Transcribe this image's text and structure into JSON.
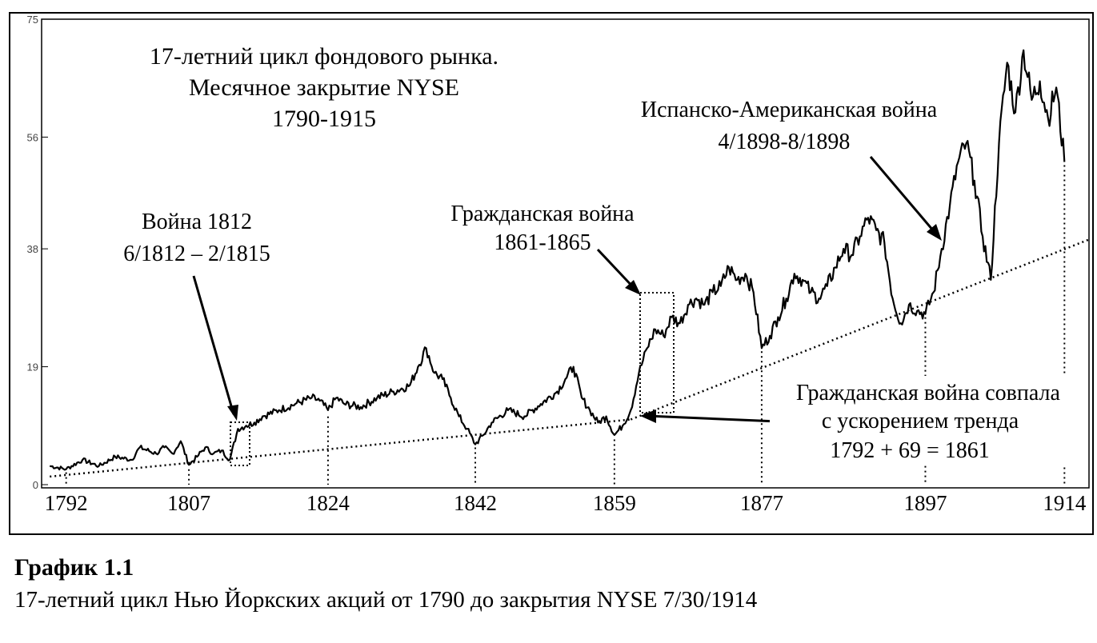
{
  "chart_data": {
    "type": "line",
    "title": [
      "17-летний цикл фондового рынка.",
      "Месячное закрытие NYSE",
      "1790-1915"
    ],
    "xlim": [
      1789,
      1917
    ],
    "ylim": [
      0,
      75
    ],
    "y_ticks": [
      "0",
      "19",
      "38",
      "56",
      "75"
    ],
    "x_ticks": [
      "1792",
      "1807",
      "1824",
      "1842",
      "1859",
      "1877",
      "1897",
      "1914"
    ],
    "cycle_lows": [
      {
        "x": 1792,
        "y": 2.5
      },
      {
        "x": 1807,
        "y": 3.0
      },
      {
        "x": 1824,
        "y": 11.5
      },
      {
        "x": 1842,
        "y": 6.5
      },
      {
        "x": 1859,
        "y": 7.8
      },
      {
        "x": 1877,
        "y": 22.0
      },
      {
        "x": 1897,
        "y": 27.5
      },
      {
        "x": 1914,
        "y": 52.0
      }
    ],
    "series": [
      {
        "x": [
          1790,
          1792,
          1794,
          1796,
          1798,
          1800,
          1801,
          1803,
          1804,
          1805,
          1806,
          1807,
          1808,
          1809,
          1810,
          1811,
          1812,
          1813,
          1814,
          1815,
          1816,
          1818,
          1820,
          1822,
          1823,
          1824,
          1825,
          1826,
          1828,
          1830,
          1832,
          1834,
          1835,
          1836,
          1837,
          1838,
          1839,
          1840,
          1841,
          1842,
          1843,
          1844,
          1846,
          1848,
          1850,
          1852,
          1853,
          1854,
          1855,
          1856,
          1857,
          1858,
          1859,
          1860,
          1861,
          1862,
          1863,
          1864,
          1865,
          1866,
          1867,
          1868,
          1869,
          1870,
          1871,
          1872,
          1873,
          1874,
          1875,
          1876,
          1877,
          1878,
          1879,
          1880,
          1881,
          1882,
          1883,
          1884,
          1885,
          1886,
          1887,
          1888,
          1889,
          1890,
          1891,
          1892,
          1893,
          1894,
          1895,
          1896,
          1897,
          1898,
          1899,
          1900,
          1901,
          1902,
          1903,
          1904,
          1905,
          1906,
          1907,
          1908,
          1909,
          1910,
          1911,
          1912,
          1913,
          1914
        ],
        "values": [
          3,
          2.5,
          4,
          3,
          4.5,
          4,
          6,
          5,
          6,
          5,
          7,
          3.2,
          4.5,
          6,
          5,
          5.5,
          4,
          9,
          9.5,
          10,
          11,
          12,
          13,
          14,
          13.5,
          12,
          14,
          13,
          12.5,
          14,
          15,
          16,
          19,
          22,
          18,
          17,
          14,
          11,
          9,
          6.5,
          8,
          10,
          12,
          11,
          13,
          15,
          17,
          19,
          14,
          12,
          10,
          11,
          8,
          9.5,
          12,
          18,
          22,
          25,
          24,
          27,
          26,
          29,
          30,
          29,
          31,
          32,
          35,
          33,
          34,
          31,
          22,
          24,
          27,
          30,
          34,
          33,
          31,
          30,
          32,
          35,
          38,
          37,
          40,
          43,
          41,
          39,
          30,
          26,
          29,
          28,
          27.5,
          31,
          38,
          45,
          52,
          55,
          49,
          40,
          33,
          55,
          68,
          60,
          70,
          62,
          65,
          59,
          64,
          52
        ]
      }
    ],
    "annotations": {
      "war1812": [
        "Война 1812",
        "6/1812 – 2/1815"
      ],
      "civil_war": [
        "Гражданская война",
        "1861-1865"
      ],
      "spanish_war": [
        "Испанско-Американская война",
        "4/1898-8/1898"
      ],
      "acceleration": [
        "Гражданская война совпала",
        "с ускорением тренда",
        "1792 + 69 = 1861"
      ]
    },
    "trendlines": [
      {
        "from": [
          1790,
          1.3
        ],
        "to": [
          1861,
          10.5
        ]
      },
      {
        "from": [
          1861,
          10.5
        ],
        "to": [
          1917,
          39.5
        ]
      }
    ],
    "grid": false,
    "legend": "none"
  },
  "caption": {
    "title": "График 1.1",
    "text": "17-летний цикл Нью Йоркских акций от 1790 до закрытия NYSE 7/30/1914"
  }
}
